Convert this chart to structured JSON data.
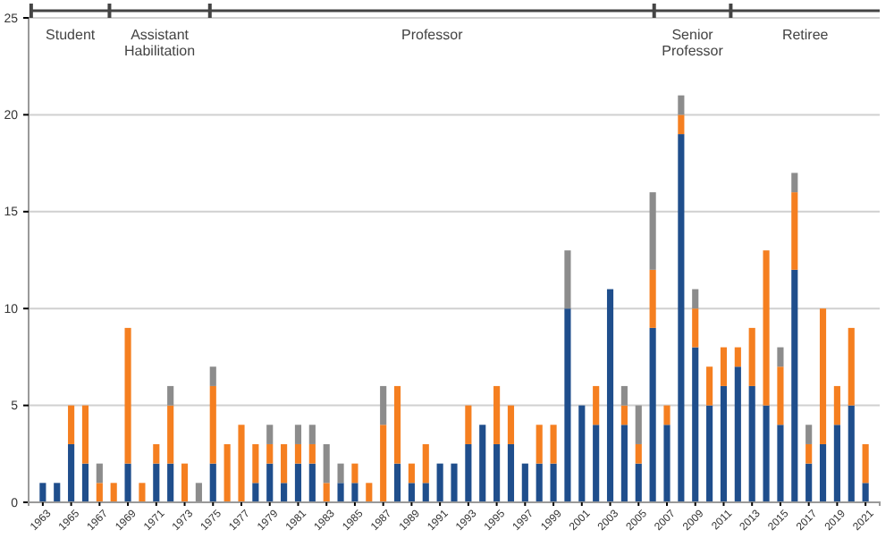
{
  "chart_data": {
    "type": "bar",
    "stacked": true,
    "x": [
      1963,
      1964,
      1965,
      1966,
      1967,
      1968,
      1969,
      1970,
      1971,
      1972,
      1973,
      1974,
      1975,
      1976,
      1977,
      1978,
      1979,
      1980,
      1981,
      1982,
      1983,
      1984,
      1985,
      1986,
      1987,
      1988,
      1989,
      1990,
      1991,
      1992,
      1993,
      1994,
      1995,
      1996,
      1997,
      1998,
      1999,
      2000,
      2001,
      2002,
      2003,
      2004,
      2005,
      2006,
      2007,
      2008,
      2009,
      2010,
      2011,
      2012,
      2013,
      2014,
      2015,
      2016,
      2017,
      2018,
      2019,
      2020,
      2021
    ],
    "series": [
      {
        "color": "#1f4e8c",
        "values": [
          1,
          1,
          3,
          2,
          0,
          0,
          2,
          0,
          2,
          2,
          0,
          0,
          2,
          0,
          0,
          1,
          2,
          1,
          2,
          2,
          0,
          1,
          1,
          0,
          0,
          2,
          1,
          1,
          2,
          2,
          3,
          4,
          3,
          3,
          2,
          2,
          2,
          10,
          5,
          4,
          11,
          4,
          2,
          9,
          4,
          19,
          8,
          5,
          6,
          7,
          6,
          5,
          4,
          12,
          2,
          3,
          4,
          5,
          1
        ]
      },
      {
        "color": "#f57f20",
        "values": [
          0,
          0,
          2,
          3,
          1,
          1,
          7,
          1,
          1,
          3,
          2,
          0,
          4,
          3,
          4,
          2,
          1,
          2,
          1,
          1,
          1,
          0,
          1,
          1,
          4,
          4,
          1,
          2,
          0,
          0,
          2,
          0,
          3,
          2,
          0,
          2,
          2,
          0,
          0,
          2,
          0,
          1,
          1,
          3,
          1,
          1,
          2,
          2,
          2,
          1,
          3,
          8,
          3,
          4,
          1,
          7,
          2,
          4,
          2
        ]
      },
      {
        "color": "#8c8c8c",
        "values": [
          0,
          0,
          0,
          0,
          1,
          0,
          0,
          0,
          0,
          1,
          0,
          1,
          1,
          0,
          0,
          0,
          1,
          0,
          1,
          1,
          2,
          1,
          0,
          0,
          2,
          0,
          0,
          0,
          0,
          0,
          0,
          0,
          0,
          0,
          0,
          0,
          0,
          3,
          0,
          0,
          0,
          1,
          2,
          4,
          0,
          1,
          1,
          0,
          0,
          0,
          0,
          0,
          1,
          1,
          1,
          0,
          0,
          0,
          0
        ]
      }
    ],
    "xlim": [
      1962,
      2022
    ],
    "xticks": [
      1963,
      1965,
      1967,
      1969,
      1971,
      1973,
      1975,
      1977,
      1979,
      1981,
      1983,
      1985,
      1987,
      1989,
      1991,
      1993,
      1995,
      1997,
      1999,
      2001,
      2003,
      2005,
      2007,
      2009,
      2011,
      2013,
      2015,
      2017,
      2019,
      2021
    ],
    "ylim": [
      0,
      25
    ],
    "yticks": [
      0,
      5,
      10,
      15,
      20,
      25
    ],
    "grid": "y",
    "annotations": [
      "Student",
      "Assistant Habilitation",
      "Professor",
      "Senior Professor",
      "Retiree"
    ]
  }
}
